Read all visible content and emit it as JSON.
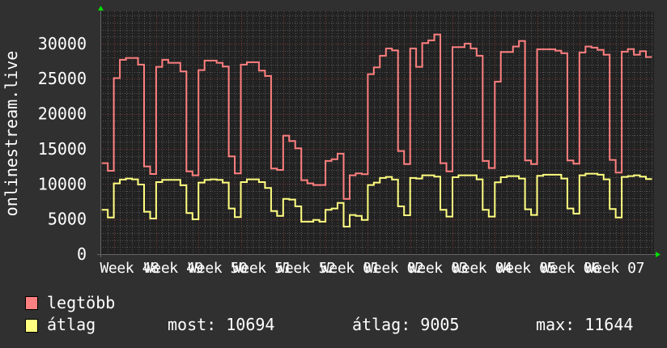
{
  "chart_data": {
    "type": "line",
    "title": "",
    "ylabel": "onlinestream.live",
    "xlabel": "",
    "ylim": [
      0,
      34600
    ],
    "y_ticks": [
      0,
      5000,
      10000,
      15000,
      20000,
      25000,
      30000
    ],
    "x_tick_labels": [
      "Week 48",
      "Week 49",
      "Week 50",
      "Week 51",
      "Week 52",
      "Week 01",
      "Week 02",
      "Week 03",
      "Week 04",
      "Week 05",
      "Week 06",
      "Week 07"
    ],
    "x_resolution": "daily",
    "grid": true,
    "legend_position": "bottom-left",
    "series": [
      {
        "name": "legtöbb",
        "color": "#ff7f7f",
        "values": [
          12960,
          11880,
          25080,
          27690,
          27960,
          27960,
          27000,
          12500,
          11420,
          26690,
          27690,
          27270,
          27270,
          26040,
          11800,
          11230,
          26230,
          27580,
          27580,
          27270,
          26730,
          13920,
          11500,
          27000,
          27350,
          27350,
          26150,
          25380,
          12190,
          12000,
          16880,
          16120,
          15080,
          10540,
          10080,
          9850,
          9850,
          13270,
          13530,
          14310,
          7880,
          11230,
          11500,
          11380,
          25650,
          26610,
          28270,
          29310,
          29040,
          14690,
          12840,
          29310,
          26690,
          30080,
          30460,
          31300,
          12960,
          11800,
          29500,
          29500,
          30000,
          29310,
          28270,
          13270,
          12270,
          24580,
          28810,
          28810,
          29580,
          30380,
          13350,
          12840,
          29190,
          29190,
          29190,
          29000,
          28620,
          13350,
          12900,
          28730,
          29580,
          29420,
          29110,
          28420,
          13420,
          11620,
          28850,
          29230,
          28420,
          28920,
          28080
        ]
      },
      {
        "name": "átlag",
        "color": "#ffff80",
        "values": [
          6310,
          5230,
          10080,
          10620,
          10770,
          10660,
          9920,
          6040,
          5080,
          10270,
          10580,
          10580,
          10580,
          9810,
          5850,
          4960,
          10190,
          10580,
          10660,
          10580,
          10190,
          6500,
          5270,
          10270,
          10660,
          10660,
          10270,
          9420,
          6150,
          5460,
          7880,
          7770,
          6810,
          4620,
          4620,
          4880,
          4620,
          6310,
          6500,
          7300,
          3920,
          5580,
          5460,
          4880,
          9850,
          10190,
          10850,
          11000,
          10620,
          6810,
          5540,
          10850,
          10770,
          11230,
          11230,
          11040,
          6310,
          5350,
          10960,
          11230,
          11230,
          11230,
          10660,
          6310,
          5350,
          10230,
          10960,
          11120,
          11120,
          10770,
          6390,
          5580,
          11160,
          11310,
          11310,
          11310,
          10770,
          6500,
          5770,
          11230,
          11460,
          11460,
          11310,
          10660,
          6420,
          5230,
          11000,
          11120,
          11230,
          11040,
          10694
        ]
      }
    ]
  },
  "legend": {
    "items": [
      {
        "label": "legtöbb",
        "color": "#ff8080"
      },
      {
        "label": "átlag",
        "color": "#ffff80"
      }
    ],
    "stats": {
      "current": "most: 10694",
      "average": "átlag: 9005",
      "max": "max: 11644"
    }
  },
  "colors": {
    "background": "#303030",
    "plot_background": "#222222",
    "grid_minor": "#555555",
    "grid_major": "#803838",
    "arrow": "#00dd00"
  }
}
